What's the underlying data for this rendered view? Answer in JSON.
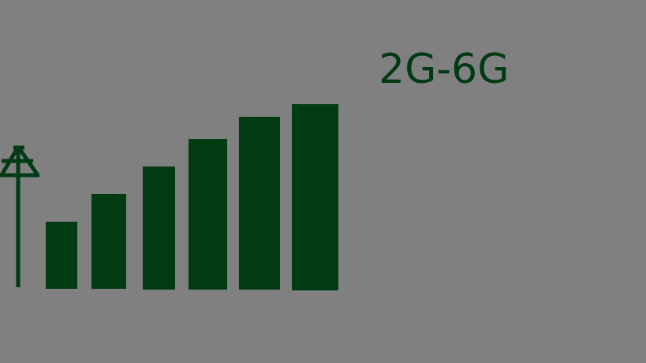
{
  "title": "2G-6G",
  "colors": {
    "background": "#808080",
    "foreground": "#003b14"
  },
  "icon": "antenna-tower-icon",
  "signal_bars": [
    {
      "label": "",
      "level": 0.36
    },
    {
      "label": "",
      "level": 0.51
    },
    {
      "label": "",
      "level": 0.66
    },
    {
      "label": "",
      "level": 0.81
    },
    {
      "label": "",
      "level": 0.93
    },
    {
      "label": "",
      "level": 1.0
    }
  ]
}
